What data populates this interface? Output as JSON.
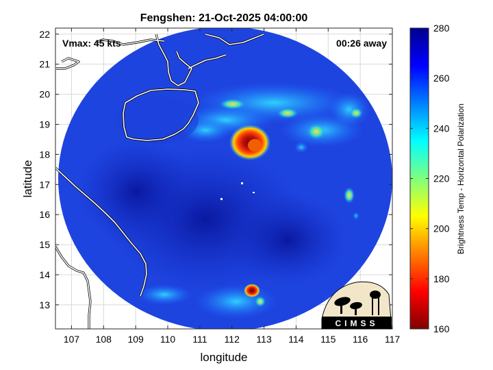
{
  "title": "Fengshen: 21-Oct-2025 04:00:00",
  "vmax_label": "Vmax: 45 kts",
  "away_label": "00:26 away",
  "xlabel": "longitude",
  "ylabel": "latitude",
  "colorbar_label": "Brightness Temp - Horizontal Polarization",
  "logo_text": "CIMSS",
  "x_ticks": [
    "107",
    "108",
    "109",
    "110",
    "111",
    "112",
    "113",
    "114",
    "115",
    "116",
    "117"
  ],
  "y_ticks": [
    "22",
    "21",
    "20",
    "19",
    "18",
    "17",
    "16",
    "15",
    "14",
    "13"
  ],
  "cb_ticks": [
    "280",
    "260",
    "240",
    "220",
    "200",
    "180",
    "160"
  ],
  "x_range": [
    106.5,
    117
  ],
  "y_range": [
    12.2,
    22.2
  ],
  "cb_range": [
    160,
    280
  ],
  "storm_center": {
    "lon": 112.5,
    "lat": 17.95
  },
  "colors": {
    "background_blue": "#1a3cdc",
    "hot_core": "#b01010",
    "coast": "#ffffff"
  }
}
